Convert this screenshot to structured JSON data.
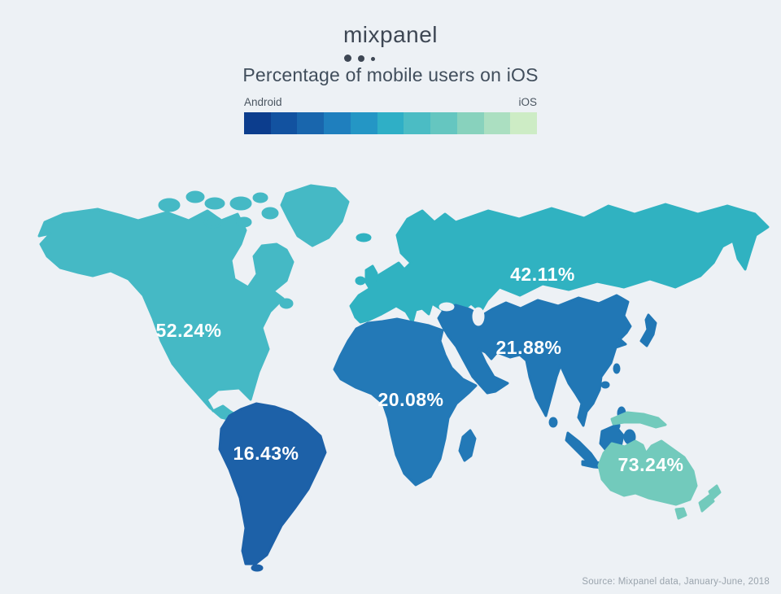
{
  "header": {
    "logo": "mixpanel",
    "title": "Percentage of mobile users on iOS"
  },
  "legend": {
    "left_label": "Android",
    "right_label": "iOS",
    "colors": [
      "#0c3d8d",
      "#1252a0",
      "#1966ad",
      "#1f7fbe",
      "#2496c5",
      "#2fafc6",
      "#4bbcc4",
      "#65c6c0",
      "#88d2bd",
      "#abdfc1",
      "#cdecc5"
    ]
  },
  "map": {
    "background": "#edf1f5",
    "regions": [
      {
        "name": "North America",
        "value": 52.24,
        "label": "52.24%",
        "color": "#45b9c5"
      },
      {
        "name": "South America",
        "value": 16.43,
        "label": "16.43%",
        "color": "#1d61a8"
      },
      {
        "name": "Europe & Russia",
        "value": 42.11,
        "label": "42.11%",
        "color": "#30b2c1"
      },
      {
        "name": "Africa",
        "value": 20.08,
        "label": "20.08%",
        "color": "#2379b7"
      },
      {
        "name": "Asia",
        "value": 21.88,
        "label": "21.88%",
        "color": "#2177b5"
      },
      {
        "name": "Oceania",
        "value": 73.24,
        "label": "73.24%",
        "color": "#72cabc"
      }
    ]
  },
  "footer": {
    "source": "Source: Mixpanel data, January-June, 2018"
  },
  "chart_data": {
    "type": "heatmap",
    "subtype": "choropleth_world_map",
    "title": "Percentage of mobile users on iOS",
    "unit": "%",
    "categories": [
      "North America",
      "South America",
      "Europe & Russia",
      "Africa",
      "Asia",
      "Oceania"
    ],
    "values": [
      52.24,
      16.43,
      42.11,
      20.08,
      21.88,
      73.24
    ],
    "colorscale": {
      "low_label": "Android",
      "high_label": "iOS",
      "colors": [
        "#0c3d8d",
        "#1252a0",
        "#1966ad",
        "#1f7fbe",
        "#2496c5",
        "#2fafc6",
        "#4bbcc4",
        "#65c6c0",
        "#88d2bd",
        "#abdfc1",
        "#cdecc5"
      ]
    },
    "legend_position": "top",
    "source": "Source: Mixpanel data, January-June, 2018"
  }
}
